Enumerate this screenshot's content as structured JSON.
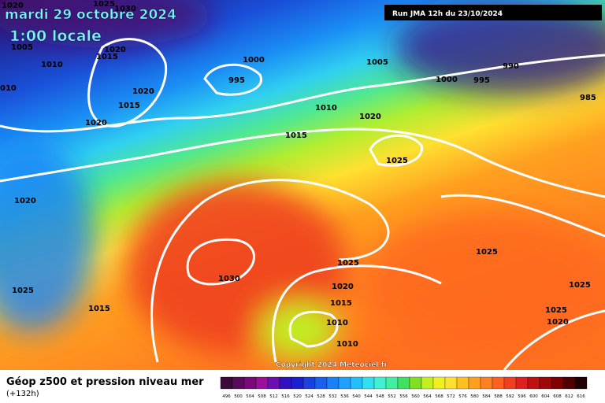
{
  "header": {
    "title": "mardi 29 octobre 2024",
    "subtitle": "1:00 locale",
    "run": "Run JMA 12h du 23/10/2024"
  },
  "copyright": "Copyright 2024 Meteociel.fr",
  "legend": {
    "title": "Géop z500 et pression niveau mer",
    "subtitle": "(+132h)"
  },
  "scale": {
    "labels": [
      496,
      500,
      504,
      508,
      512,
      516,
      520,
      524,
      528,
      532,
      536,
      540,
      544,
      548,
      552,
      556,
      560,
      564,
      568,
      572,
      576,
      580,
      584,
      588,
      592,
      596,
      600,
      604,
      608,
      612,
      616
    ],
    "colors": [
      "#3a0a3a",
      "#5a0a5a",
      "#7a0a7a",
      "#9a109a",
      "#6a10b0",
      "#3010c0",
      "#1a20d0",
      "#1a40e0",
      "#1a60f0",
      "#1a80f8",
      "#20a0ff",
      "#20c0ff",
      "#30e0f0",
      "#40f0d0",
      "#40f0a0",
      "#40e060",
      "#80e020",
      "#c0f020",
      "#f0f020",
      "#ffe030",
      "#ffc020",
      "#ffa020",
      "#ff8020",
      "#ff6020",
      "#f04020",
      "#e02020",
      "#c01010",
      "#a00808",
      "#800000",
      "#500000",
      "#200000"
    ]
  },
  "isobars": [
    "1020",
    "1025",
    "1030",
    "1005",
    "1015",
    "1020",
    "1010",
    "1000",
    "1005",
    "990",
    "995",
    "1020",
    "1015",
    "1000",
    "995",
    "985",
    "010",
    "1020",
    "1010",
    "1020",
    "1015",
    "1025",
    "1020",
    "1025",
    "1025",
    "1030",
    "1020",
    "1025",
    "1025",
    "1015",
    "1015",
    "1025",
    "1010",
    "1020",
    "1010"
  ]
}
